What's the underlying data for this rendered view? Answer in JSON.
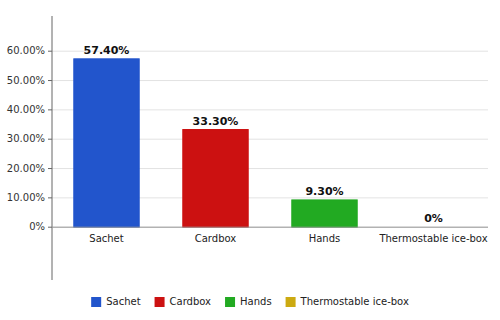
{
  "chart_data": {
    "type": "bar",
    "categories": [
      "Sachet",
      "Cardbox",
      "Hands",
      "Thermostable ice-box"
    ],
    "values": [
      57.4,
      33.3,
      9.3,
      0.0
    ],
    "value_labels": [
      "57.40%",
      "33.30%",
      "9.30%",
      "0%"
    ],
    "colors": [
      "#2255CC",
      "#CC1111",
      "#22AA22",
      "#CCAA11"
    ],
    "ylim": [
      -18,
      72
    ],
    "yticks": [
      {
        "value": 0,
        "label": "0%"
      },
      {
        "value": 10.0,
        "label": "10.00%"
      },
      {
        "value": 20.0,
        "label": "20.00%"
      },
      {
        "value": 30.0,
        "label": "30.00%"
      },
      {
        "value": 40.0,
        "label": "40.00%"
      },
      {
        "value": 50.0,
        "label": "50.00%"
      },
      {
        "value": 60.0,
        "label": "60.00%"
      }
    ],
    "grid": true,
    "data_labels": true,
    "legend": "bottom"
  }
}
